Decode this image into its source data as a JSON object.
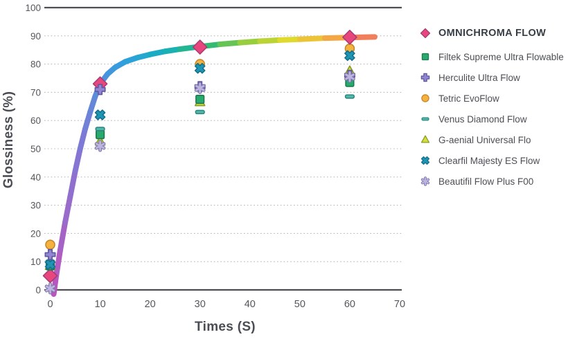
{
  "chart_data": {
    "type": "scatter",
    "title": "",
    "xlabel": "Times (S)",
    "ylabel": "Glossiness (%)",
    "xlim": [
      0,
      70
    ],
    "ylim": [
      0,
      100
    ],
    "x_ticks": [
      0,
      10,
      20,
      30,
      40,
      50,
      60,
      70
    ],
    "y_ticks": [
      0,
      10,
      20,
      30,
      40,
      50,
      60,
      70,
      80,
      90,
      100
    ],
    "grid": "horizontal-dotted",
    "legend_position": "right",
    "axis_color": "#4d4d52",
    "grid_color": "#b9b9bd",
    "tick_color": "#54565b",
    "x": [
      0,
      10,
      30,
      60
    ],
    "series": [
      {
        "name": "OMNICHROMA FLOW",
        "marker": "diamond",
        "fill": "#e8477d",
        "stroke": "#a93c74",
        "values": [
          5,
          73,
          86,
          89.5
        ]
      },
      {
        "name": "Filtek Supreme Ultra Flowable",
        "marker": "square",
        "fill": "#2aa96e",
        "stroke": "#1d7a4f",
        "values": [
          8.5,
          55,
          67.5,
          73.5
        ]
      },
      {
        "name": "Herculite Ultra Flow",
        "marker": "plus",
        "fill": "#9186d2",
        "stroke": "#5f55a0",
        "values": [
          12.5,
          71,
          72,
          76
        ]
      },
      {
        "name": "Tetric EvoFlow",
        "marker": "circle",
        "fill": "#f4b33e",
        "stroke": "#c5872b",
        "values": [
          16,
          73,
          80,
          85.5
        ]
      },
      {
        "name": "Venus Diamond Flow",
        "marker": "dash",
        "fill": "#55b7ab",
        "stroke": "#2d8a80",
        "values": [
          10,
          57,
          63,
          68.5
        ]
      },
      {
        "name": "G-aenial Universal Flo",
        "marker": "triangle",
        "fill": "#d5df3b",
        "stroke": "#8a9b28",
        "values": [
          8.5,
          52.5,
          66.5,
          77.5
        ]
      },
      {
        "name": "Clearfil Majesty ES Flow",
        "marker": "x",
        "fill": "#1f95b4",
        "stroke": "#15708c",
        "values": [
          9,
          62,
          78.5,
          83
        ]
      },
      {
        "name": "Beautifil Flow Plus F00",
        "marker": "asterisk",
        "fill": "#bdb5dd",
        "stroke": "#7f76b0",
        "values": [
          0.5,
          51,
          71.5,
          75.5
        ]
      }
    ],
    "draw_order": [
      3,
      0,
      5,
      1,
      4,
      6,
      2,
      7
    ],
    "curve": {
      "series": "OMNICHROMA FLOW",
      "x": [
        0.7,
        1.2,
        2,
        3,
        4,
        5,
        6,
        7,
        8,
        9,
        10,
        11.5,
        13,
        15,
        17.5,
        20,
        23,
        26,
        30,
        34,
        38,
        42,
        46,
        50,
        55,
        60,
        65
      ],
      "y": [
        -1.5,
        5,
        14,
        24,
        33,
        42,
        50,
        57,
        63,
        68.5,
        73,
        76.5,
        78.8,
        80.8,
        82.3,
        83.4,
        84.5,
        85.3,
        86.2,
        87,
        87.6,
        88.1,
        88.5,
        88.8,
        89.2,
        89.4,
        89.6
      ],
      "gradient": [
        "#bb54bb",
        "#ad5fc3",
        "#9a6aca",
        "#8a73d0",
        "#7a7cd6",
        "#5b8bd9",
        "#2f9fdf",
        "#16b0bd",
        "#2eba74",
        "#97cd3e",
        "#e2da2e",
        "#f5ae3f",
        "#ee6b67"
      ]
    }
  }
}
